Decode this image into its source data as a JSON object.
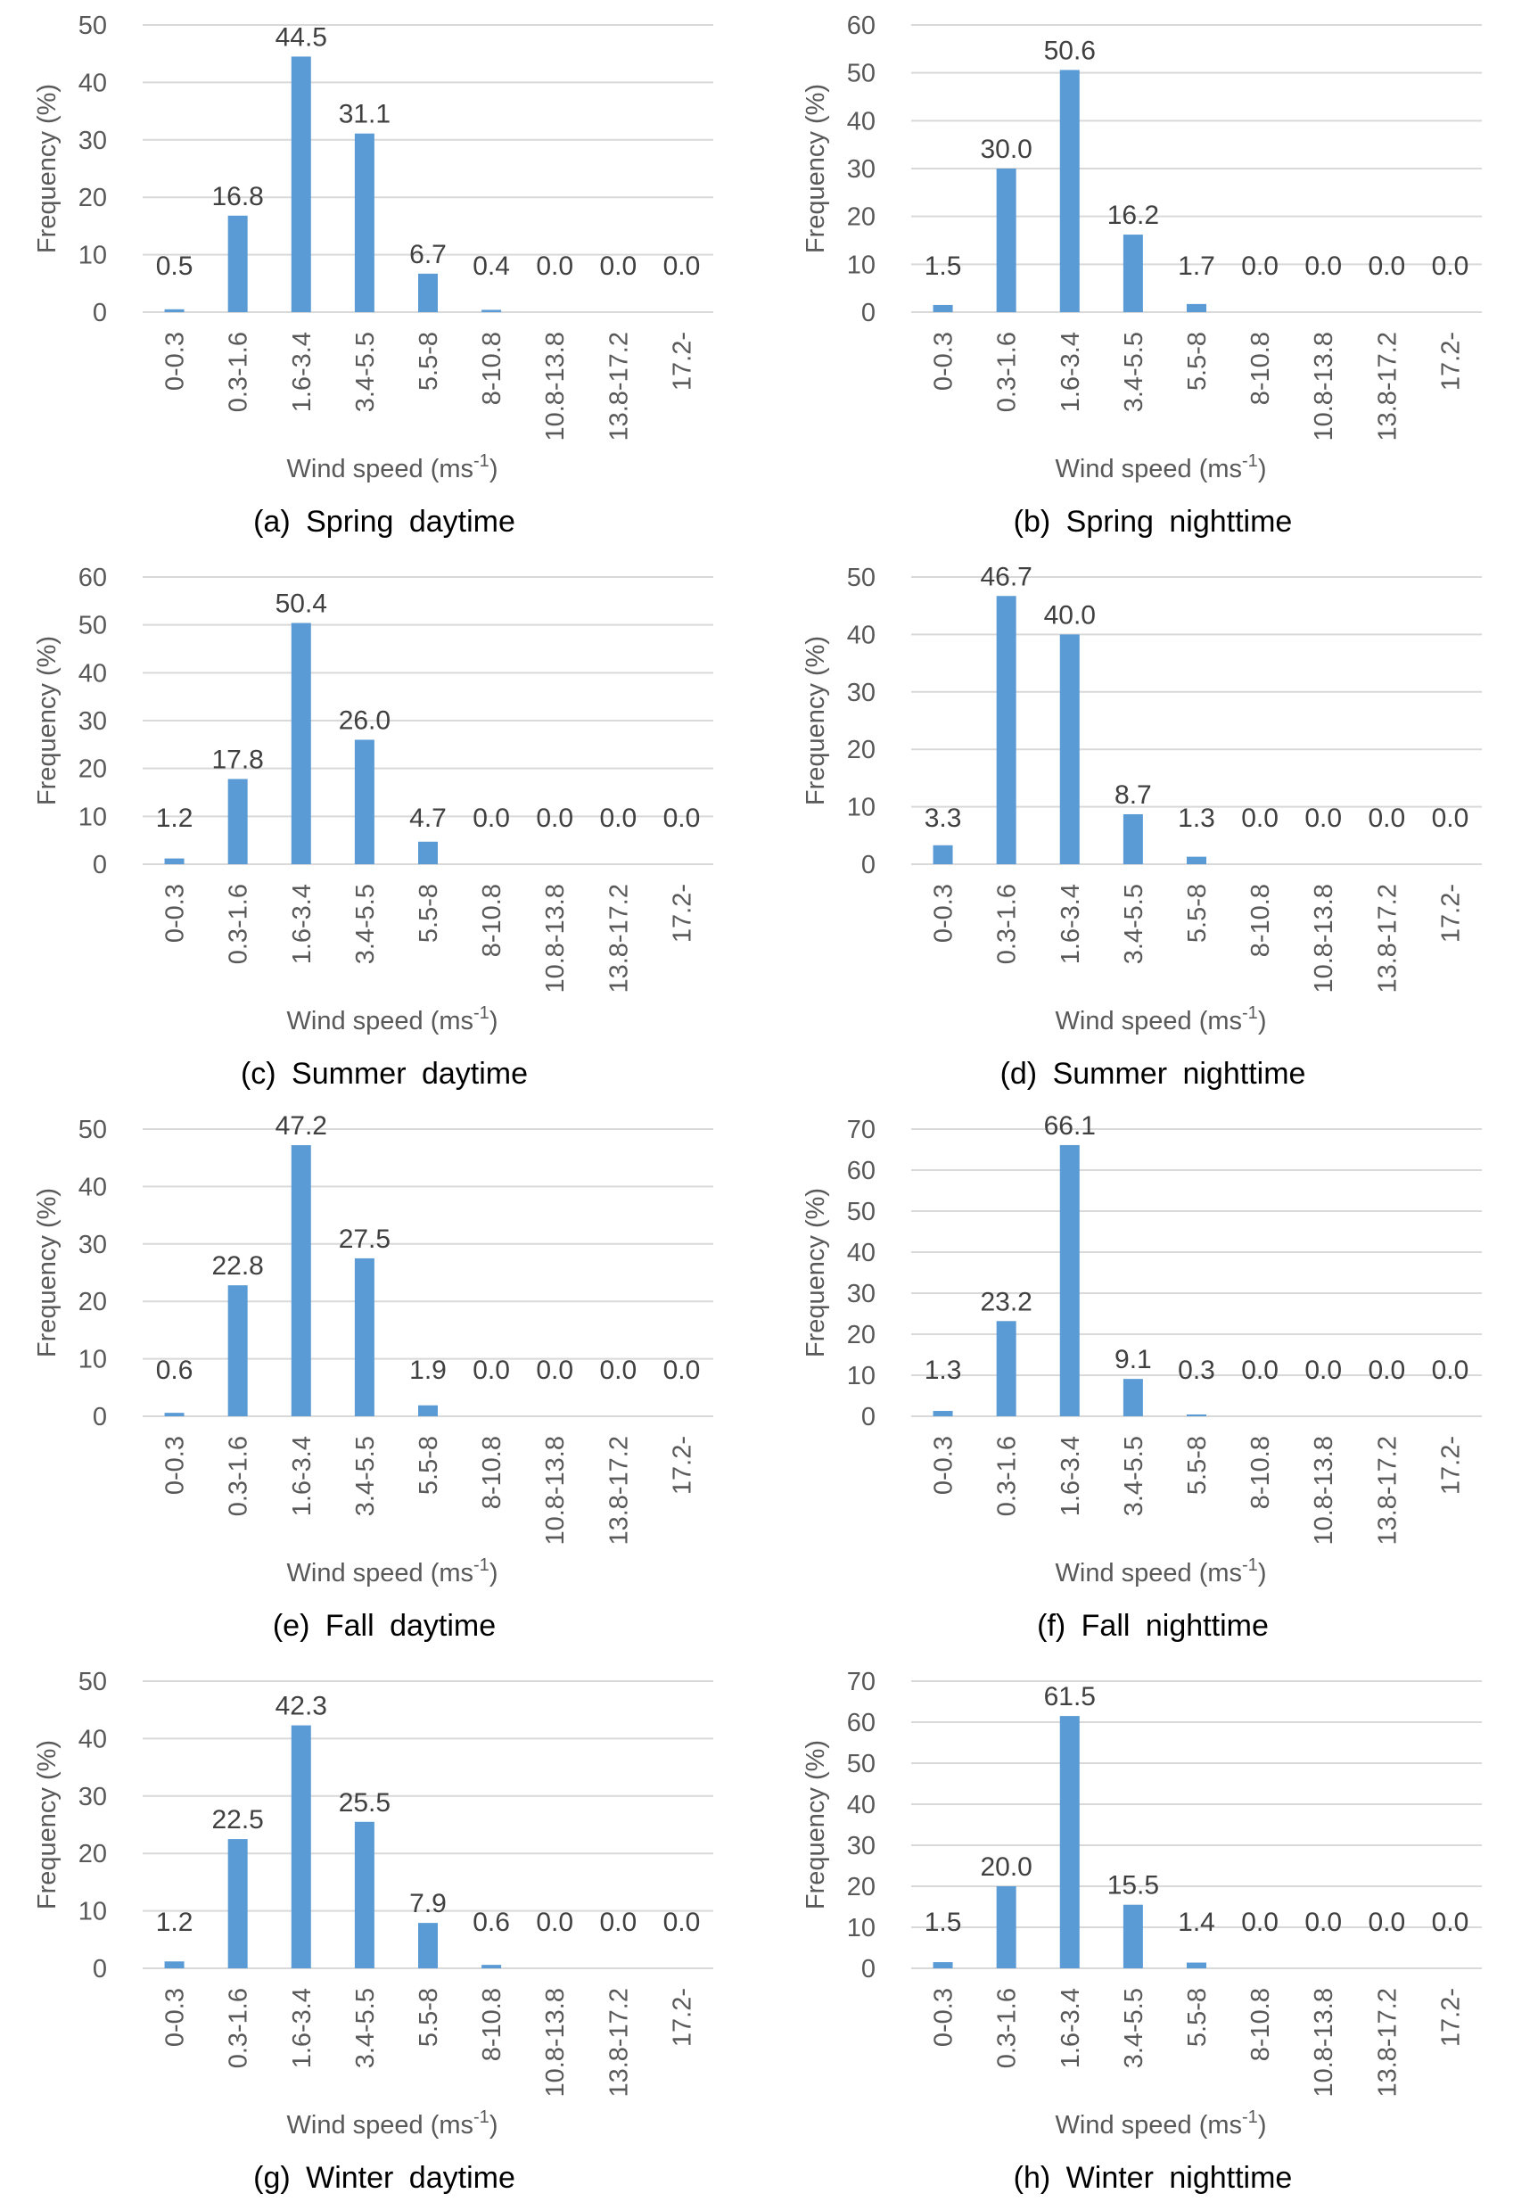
{
  "style": {
    "bar_color": "#5B9BD5",
    "grid_color": "#D9D9D9",
    "text_color": "#595959"
  },
  "chart_data": [
    {
      "type": "bar",
      "caption": "(a) Spring daytime",
      "xlabel": "Wind speed (ms-1)",
      "ylabel": "Frequency (%)",
      "ylim": [
        0,
        50
      ],
      "yticks": [
        0,
        10,
        20,
        30,
        40,
        50
      ],
      "categories": [
        "0-0.3",
        "0.3-1.6",
        "1.6-3.4",
        "3.4-5.5",
        "5.5-8",
        "8-10.8",
        "10.8-13.8",
        "13.8-17.2",
        "17.2-"
      ],
      "values": [
        0.5,
        16.8,
        44.5,
        31.1,
        6.7,
        0.4,
        0.0,
        0.0,
        0.0
      ],
      "value_labels": [
        "0.5",
        "16.8",
        "44.5",
        "31.1",
        "6.7",
        "0.4",
        "0.0",
        "0.0",
        "0.0"
      ],
      "grid": true
    },
    {
      "type": "bar",
      "caption": "(b) Spring nighttime",
      "xlabel": "Wind speed (ms-1)",
      "ylabel": "Frequency (%)",
      "ylim": [
        0,
        60
      ],
      "yticks": [
        0,
        10,
        20,
        30,
        40,
        50,
        60
      ],
      "categories": [
        "0-0.3",
        "0.3-1.6",
        "1.6-3.4",
        "3.4-5.5",
        "5.5-8",
        "8-10.8",
        "10.8-13.8",
        "13.8-17.2",
        "17.2-"
      ],
      "values": [
        1.5,
        30.0,
        50.6,
        16.2,
        1.7,
        0.0,
        0.0,
        0.0,
        0.0
      ],
      "value_labels": [
        "1.5",
        "30.0",
        "50.6",
        "16.2",
        "1.7",
        "0.0",
        "0.0",
        "0.0",
        "0.0"
      ],
      "grid": true
    },
    {
      "type": "bar",
      "caption": "(c) Summer daytime",
      "xlabel": "Wind speed (ms-1)",
      "ylabel": "Frequency (%)",
      "ylim": [
        0,
        60
      ],
      "yticks": [
        0,
        10,
        20,
        30,
        40,
        50,
        60
      ],
      "categories": [
        "0-0.3",
        "0.3-1.6",
        "1.6-3.4",
        "3.4-5.5",
        "5.5-8",
        "8-10.8",
        "10.8-13.8",
        "13.8-17.2",
        "17.2-"
      ],
      "values": [
        1.2,
        17.8,
        50.4,
        26.0,
        4.7,
        0.0,
        0.0,
        0.0,
        0.0
      ],
      "value_labels": [
        "1.2",
        "17.8",
        "50.4",
        "26.0",
        "4.7",
        "0.0",
        "0.0",
        "0.0",
        "0.0"
      ],
      "grid": true
    },
    {
      "type": "bar",
      "caption": "(d) Summer nighttime",
      "xlabel": "Wind speed (ms-1)",
      "ylabel": "Frequency (%)",
      "ylim": [
        0,
        50
      ],
      "yticks": [
        0,
        10,
        20,
        30,
        40,
        50
      ],
      "categories": [
        "0-0.3",
        "0.3-1.6",
        "1.6-3.4",
        "3.4-5.5",
        "5.5-8",
        "8-10.8",
        "10.8-13.8",
        "13.8-17.2",
        "17.2-"
      ],
      "values": [
        3.3,
        46.7,
        40.0,
        8.7,
        1.3,
        0.0,
        0.0,
        0.0,
        0.0
      ],
      "value_labels": [
        "3.3",
        "46.7",
        "40.0",
        "8.7",
        "1.3",
        "0.0",
        "0.0",
        "0.0",
        "0.0"
      ],
      "grid": true
    },
    {
      "type": "bar",
      "caption": "(e) Fall daytime",
      "xlabel": "Wind speed (ms-1)",
      "ylabel": "Frequency (%)",
      "ylim": [
        0,
        50
      ],
      "yticks": [
        0,
        10,
        20,
        30,
        40,
        50
      ],
      "categories": [
        "0-0.3",
        "0.3-1.6",
        "1.6-3.4",
        "3.4-5.5",
        "5.5-8",
        "8-10.8",
        "10.8-13.8",
        "13.8-17.2",
        "17.2-"
      ],
      "values": [
        0.6,
        22.8,
        47.2,
        27.5,
        1.9,
        0.0,
        0.0,
        0.0,
        0.0
      ],
      "value_labels": [
        "0.6",
        "22.8",
        "47.2",
        "27.5",
        "1.9",
        "0.0",
        "0.0",
        "0.0",
        "0.0"
      ],
      "grid": true
    },
    {
      "type": "bar",
      "caption": "(f) Fall nighttime",
      "xlabel": "Wind speed (ms-1)",
      "ylabel": "Frequency (%)",
      "ylim": [
        0,
        70
      ],
      "yticks": [
        0,
        10,
        20,
        30,
        40,
        50,
        60,
        70
      ],
      "categories": [
        "0-0.3",
        "0.3-1.6",
        "1.6-3.4",
        "3.4-5.5",
        "5.5-8",
        "8-10.8",
        "10.8-13.8",
        "13.8-17.2",
        "17.2-"
      ],
      "values": [
        1.3,
        23.2,
        66.1,
        9.1,
        0.3,
        0.0,
        0.0,
        0.0,
        0.0
      ],
      "value_labels": [
        "1.3",
        "23.2",
        "66.1",
        "9.1",
        "0.3",
        "0.0",
        "0.0",
        "0.0",
        "0.0"
      ],
      "grid": true
    },
    {
      "type": "bar",
      "caption": "(g) Winter daytime",
      "xlabel": "Wind speed (ms-1)",
      "ylabel": "Frequency (%)",
      "ylim": [
        0,
        50
      ],
      "yticks": [
        0,
        10,
        20,
        30,
        40,
        50
      ],
      "categories": [
        "0-0.3",
        "0.3-1.6",
        "1.6-3.4",
        "3.4-5.5",
        "5.5-8",
        "8-10.8",
        "10.8-13.8",
        "13.8-17.2",
        "17.2-"
      ],
      "values": [
        1.2,
        22.5,
        42.3,
        25.5,
        7.9,
        0.6,
        0.0,
        0.0,
        0.0
      ],
      "value_labels": [
        "1.2",
        "22.5",
        "42.3",
        "25.5",
        "7.9",
        "0.6",
        "0.0",
        "0.0",
        "0.0"
      ],
      "grid": true
    },
    {
      "type": "bar",
      "caption": "(h) Winter nighttime",
      "xlabel": "Wind speed (ms-1)",
      "ylabel": "Frequency (%)",
      "ylim": [
        0,
        70
      ],
      "yticks": [
        0,
        10,
        20,
        30,
        40,
        50,
        60,
        70
      ],
      "categories": [
        "0-0.3",
        "0.3-1.6",
        "1.6-3.4",
        "3.4-5.5",
        "5.5-8",
        "8-10.8",
        "10.8-13.8",
        "13.8-17.2",
        "17.2-"
      ],
      "values": [
        1.5,
        20.0,
        61.5,
        15.5,
        1.4,
        0.0,
        0.0,
        0.0,
        0.0
      ],
      "value_labels": [
        "1.5",
        "20.0",
        "61.5",
        "15.5",
        "1.4",
        "0.0",
        "0.0",
        "0.0",
        "0.0"
      ],
      "grid": true
    }
  ]
}
